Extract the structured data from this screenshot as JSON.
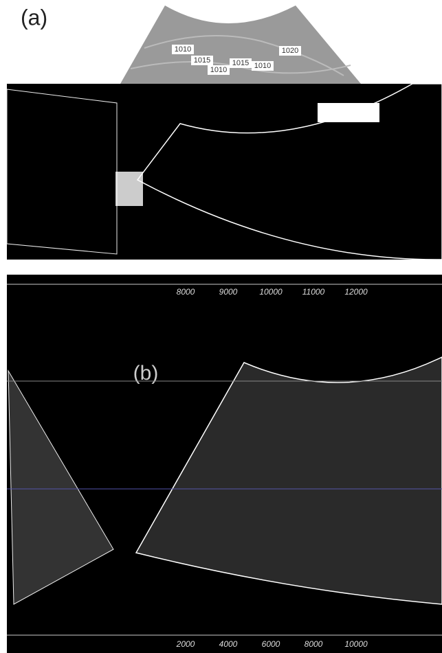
{
  "panels": [
    {
      "label": "(a)",
      "contour_labels": [
        "1010",
        "1015",
        "1010",
        "1015",
        "1010",
        "1020"
      ],
      "colorbar_ticks": [
        "8000",
        "9000",
        "10000",
        "11000",
        "12000"
      ]
    },
    {
      "label": "(b)",
      "colorbar_ticks": [
        "2000",
        "4000",
        "6000",
        "8000",
        "10000"
      ]
    }
  ]
}
